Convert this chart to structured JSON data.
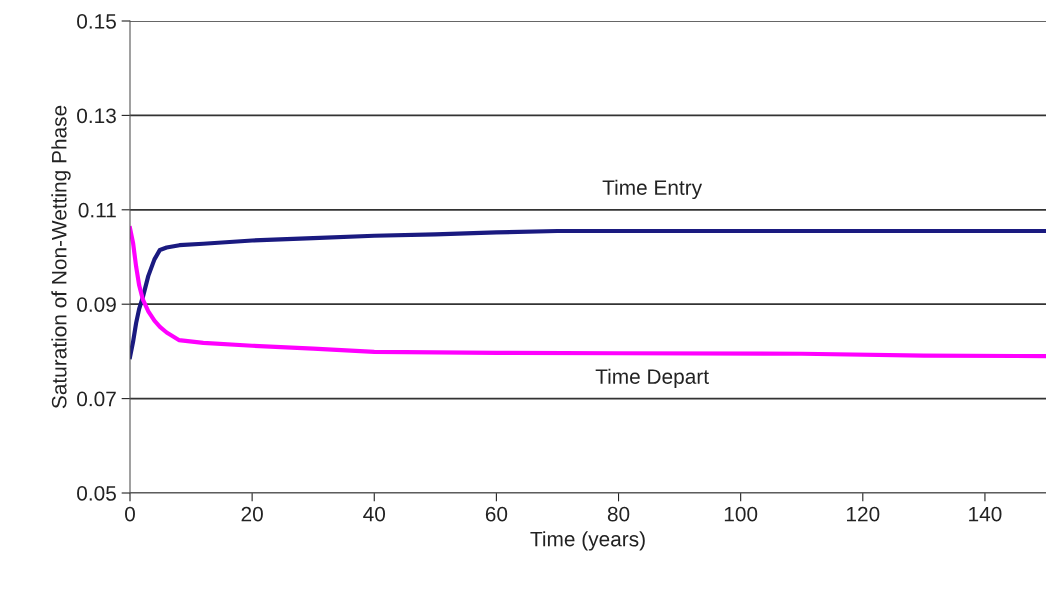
{
  "chart_data": {
    "type": "line",
    "xlabel": "Time (years)",
    "ylabel": "Saturation of Non-Wetting Phase",
    "xlim": [
      0,
      150
    ],
    "xticks": [
      0,
      20,
      40,
      60,
      80,
      100,
      120,
      140
    ],
    "ylim": [
      0.05,
      0.15
    ],
    "yticks": [
      0.05,
      0.07,
      0.09,
      0.11,
      0.13,
      0.15
    ],
    "grid": "y",
    "legend": false,
    "marker": "none",
    "line_style": "solid",
    "series": [
      {
        "name": "Time Entry",
        "color": "#1a1a80",
        "x": [
          0,
          0.5,
          1,
          1.5,
          2.1,
          3,
          4,
          4.9,
          6,
          8.1,
          12,
          20,
          30,
          40,
          50,
          60,
          70,
          100,
          130,
          150
        ],
        "values": [
          0.0788,
          0.082,
          0.086,
          0.089,
          0.0915,
          0.096,
          0.0995,
          0.1015,
          0.102,
          0.1025,
          0.1028,
          0.1035,
          0.104,
          0.1045,
          0.1048,
          0.1052,
          0.1055,
          0.1055,
          0.1055,
          0.1055
        ]
      },
      {
        "name": "Time Depart",
        "color": "#ff00ff",
        "x": [
          0,
          0.5,
          1,
          1.5,
          2.1,
          3,
          4,
          4.9,
          6,
          8,
          12,
          20,
          30,
          40,
          60,
          80,
          110,
          130,
          150
        ],
        "values": [
          0.1061,
          0.103,
          0.098,
          0.094,
          0.091,
          0.0885,
          0.0865,
          0.0852,
          0.084,
          0.0824,
          0.0818,
          0.0812,
          0.0806,
          0.0799,
          0.0797,
          0.0796,
          0.0795,
          0.0791,
          0.079
        ]
      }
    ]
  }
}
